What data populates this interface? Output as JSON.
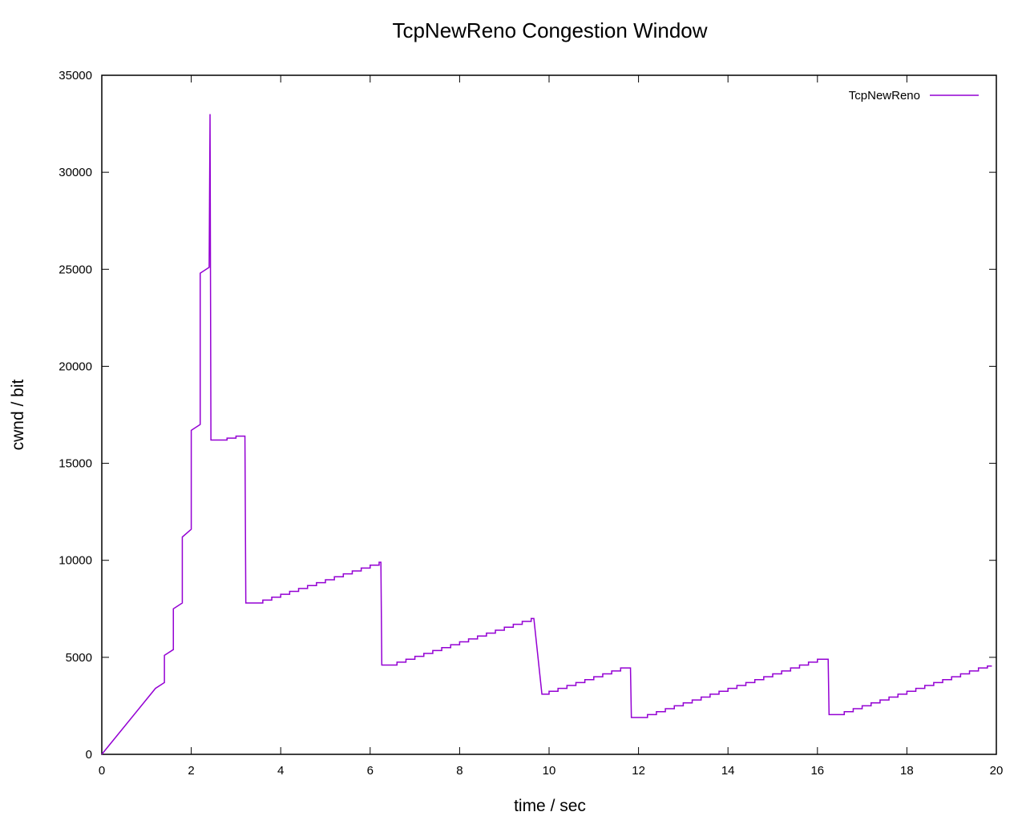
{
  "chart_data": {
    "type": "line",
    "title": "TcpNewReno Congestion Window",
    "xlabel": "time / sec",
    "ylabel": "cwnd / bit",
    "xlim": [
      0,
      20
    ],
    "ylim": [
      0,
      35000
    ],
    "xticks": [
      0,
      2,
      4,
      6,
      8,
      10,
      12,
      14,
      16,
      18,
      20
    ],
    "yticks": [
      0,
      5000,
      10000,
      15000,
      20000,
      25000,
      30000,
      35000
    ],
    "grid": false,
    "legend_position": "top-right",
    "series_color": "#9400d3",
    "series": [
      {
        "name": "TcpNewReno",
        "points": [
          [
            0.0,
            0
          ],
          [
            1.2,
            3400
          ],
          [
            1.4,
            3700
          ],
          [
            1.4,
            5100
          ],
          [
            1.6,
            5400
          ],
          [
            1.6,
            7500
          ],
          [
            1.8,
            7800
          ],
          [
            1.8,
            11200
          ],
          [
            2.0,
            11600
          ],
          [
            2.0,
            16700
          ],
          [
            2.2,
            17000
          ],
          [
            2.2,
            24800
          ],
          [
            2.4,
            25100
          ],
          [
            2.42,
            33000
          ],
          [
            2.44,
            16200
          ],
          [
            2.8,
            16200
          ],
          [
            2.8,
            16300
          ],
          [
            3.0,
            16300
          ],
          [
            3.0,
            16400
          ],
          [
            3.2,
            16400
          ],
          [
            3.22,
            7800
          ],
          [
            3.6,
            7800
          ],
          [
            3.6,
            7950
          ],
          [
            3.8,
            7950
          ],
          [
            3.8,
            8100
          ],
          [
            4.0,
            8100
          ],
          [
            4.0,
            8250
          ],
          [
            4.2,
            8250
          ],
          [
            4.2,
            8400
          ],
          [
            4.4,
            8400
          ],
          [
            4.4,
            8550
          ],
          [
            4.6,
            8550
          ],
          [
            4.6,
            8700
          ],
          [
            4.8,
            8700
          ],
          [
            4.8,
            8850
          ],
          [
            5.0,
            8850
          ],
          [
            5.0,
            9000
          ],
          [
            5.2,
            9000
          ],
          [
            5.2,
            9150
          ],
          [
            5.4,
            9150
          ],
          [
            5.4,
            9300
          ],
          [
            5.6,
            9300
          ],
          [
            5.6,
            9450
          ],
          [
            5.8,
            9450
          ],
          [
            5.8,
            9600
          ],
          [
            6.0,
            9600
          ],
          [
            6.0,
            9750
          ],
          [
            6.2,
            9750
          ],
          [
            6.2,
            9900
          ],
          [
            6.24,
            9900
          ],
          [
            6.26,
            4600
          ],
          [
            6.6,
            4600
          ],
          [
            6.6,
            4750
          ],
          [
            6.8,
            4750
          ],
          [
            6.8,
            4900
          ],
          [
            7.0,
            4900
          ],
          [
            7.0,
            5050
          ],
          [
            7.2,
            5050
          ],
          [
            7.2,
            5200
          ],
          [
            7.4,
            5200
          ],
          [
            7.4,
            5350
          ],
          [
            7.6,
            5350
          ],
          [
            7.6,
            5500
          ],
          [
            7.8,
            5500
          ],
          [
            7.8,
            5650
          ],
          [
            8.0,
            5650
          ],
          [
            8.0,
            5800
          ],
          [
            8.2,
            5800
          ],
          [
            8.2,
            5950
          ],
          [
            8.4,
            5950
          ],
          [
            8.4,
            6100
          ],
          [
            8.6,
            6100
          ],
          [
            8.6,
            6250
          ],
          [
            8.8,
            6250
          ],
          [
            8.8,
            6400
          ],
          [
            9.0,
            6400
          ],
          [
            9.0,
            6550
          ],
          [
            9.2,
            6550
          ],
          [
            9.2,
            6700
          ],
          [
            9.4,
            6700
          ],
          [
            9.4,
            6850
          ],
          [
            9.6,
            6850
          ],
          [
            9.6,
            7000
          ],
          [
            9.66,
            7000
          ],
          [
            9.84,
            3100
          ],
          [
            10.0,
            3100
          ],
          [
            10.0,
            3250
          ],
          [
            10.2,
            3250
          ],
          [
            10.2,
            3400
          ],
          [
            10.4,
            3400
          ],
          [
            10.4,
            3550
          ],
          [
            10.6,
            3550
          ],
          [
            10.6,
            3700
          ],
          [
            10.8,
            3700
          ],
          [
            10.8,
            3850
          ],
          [
            11.0,
            3850
          ],
          [
            11.0,
            4000
          ],
          [
            11.2,
            4000
          ],
          [
            11.2,
            4150
          ],
          [
            11.4,
            4150
          ],
          [
            11.4,
            4300
          ],
          [
            11.6,
            4300
          ],
          [
            11.6,
            4450
          ],
          [
            11.82,
            4450
          ],
          [
            11.84,
            1900
          ],
          [
            12.2,
            1900
          ],
          [
            12.2,
            2050
          ],
          [
            12.4,
            2050
          ],
          [
            12.4,
            2200
          ],
          [
            12.6,
            2200
          ],
          [
            12.6,
            2350
          ],
          [
            12.8,
            2350
          ],
          [
            12.8,
            2500
          ],
          [
            13.0,
            2500
          ],
          [
            13.0,
            2650
          ],
          [
            13.2,
            2650
          ],
          [
            13.2,
            2800
          ],
          [
            13.4,
            2800
          ],
          [
            13.4,
            2950
          ],
          [
            13.6,
            2950
          ],
          [
            13.6,
            3100
          ],
          [
            13.8,
            3100
          ],
          [
            13.8,
            3250
          ],
          [
            14.0,
            3250
          ],
          [
            14.0,
            3400
          ],
          [
            14.2,
            3400
          ],
          [
            14.2,
            3550
          ],
          [
            14.4,
            3550
          ],
          [
            14.4,
            3700
          ],
          [
            14.6,
            3700
          ],
          [
            14.6,
            3850
          ],
          [
            14.8,
            3850
          ],
          [
            14.8,
            4000
          ],
          [
            15.0,
            4000
          ],
          [
            15.0,
            4150
          ],
          [
            15.2,
            4150
          ],
          [
            15.2,
            4300
          ],
          [
            15.4,
            4300
          ],
          [
            15.4,
            4450
          ],
          [
            15.6,
            4450
          ],
          [
            15.6,
            4600
          ],
          [
            15.8,
            4600
          ],
          [
            15.8,
            4750
          ],
          [
            16.0,
            4750
          ],
          [
            16.0,
            4900
          ],
          [
            16.24,
            4900
          ],
          [
            16.26,
            2050
          ],
          [
            16.6,
            2050
          ],
          [
            16.6,
            2200
          ],
          [
            16.8,
            2200
          ],
          [
            16.8,
            2350
          ],
          [
            17.0,
            2350
          ],
          [
            17.0,
            2500
          ],
          [
            17.2,
            2500
          ],
          [
            17.2,
            2650
          ],
          [
            17.4,
            2650
          ],
          [
            17.4,
            2800
          ],
          [
            17.6,
            2800
          ],
          [
            17.6,
            2950
          ],
          [
            17.8,
            2950
          ],
          [
            17.8,
            3100
          ],
          [
            18.0,
            3100
          ],
          [
            18.0,
            3250
          ],
          [
            18.2,
            3250
          ],
          [
            18.2,
            3400
          ],
          [
            18.4,
            3400
          ],
          [
            18.4,
            3550
          ],
          [
            18.6,
            3550
          ],
          [
            18.6,
            3700
          ],
          [
            18.8,
            3700
          ],
          [
            18.8,
            3850
          ],
          [
            19.0,
            3850
          ],
          [
            19.0,
            4000
          ],
          [
            19.2,
            4000
          ],
          [
            19.2,
            4150
          ],
          [
            19.4,
            4150
          ],
          [
            19.4,
            4300
          ],
          [
            19.6,
            4300
          ],
          [
            19.6,
            4450
          ],
          [
            19.8,
            4450
          ],
          [
            19.8,
            4550
          ],
          [
            19.9,
            4550
          ]
        ]
      }
    ]
  }
}
